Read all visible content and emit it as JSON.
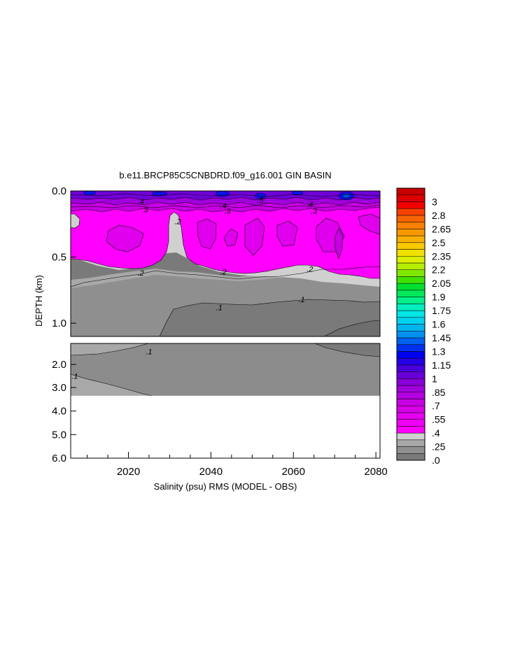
{
  "chart_data": {
    "type": "contour",
    "title": "b.e11.BRCP85C5CNBDRD.f09_g16.001 GIN BASIN",
    "xlabel": "Salinity (psu) RMS (MODEL - OBS)",
    "ylabel": "DEPTH (km)",
    "xlim": [
      2006,
      2081
    ],
    "x_ticks": [
      {
        "value": 2020,
        "label": "2020"
      },
      {
        "value": 2040,
        "label": "2040"
      },
      {
        "value": 2060,
        "label": "2060"
      },
      {
        "value": 2080,
        "label": "2080"
      }
    ],
    "upper_panel": {
      "depth_range_km": [
        0.0,
        1.1
      ],
      "y_ticks": [
        {
          "value": 0.0,
          "label": "0.0"
        },
        {
          "value": 0.5,
          "label": "0.5"
        },
        {
          "value": 1.0,
          "label": "1.0"
        }
      ],
      "contour_labels": [
        {
          "x": 2023,
          "depth": 0.08,
          "label": ".4"
        },
        {
          "x": 2024,
          "depth": 0.14,
          "label": ".3"
        },
        {
          "x": 2043,
          "depth": 0.11,
          "label": ".4"
        },
        {
          "x": 2044,
          "depth": 0.15,
          "label": ".3"
        },
        {
          "x": 2052,
          "depth": 0.07,
          "label": ".5"
        },
        {
          "x": 2064,
          "depth": 0.1,
          "label": ".4"
        },
        {
          "x": 2065,
          "depth": 0.15,
          "label": ".3"
        },
        {
          "x": 2032,
          "depth": 0.23,
          "label": ".2"
        },
        {
          "x": 2023,
          "depth": 0.62,
          "label": ".2"
        },
        {
          "x": 2043,
          "depth": 0.61,
          "label": ".2"
        },
        {
          "x": 2064,
          "depth": 0.59,
          "label": ".2"
        },
        {
          "x": 2042,
          "depth": 0.88,
          "label": ".1"
        },
        {
          "x": 2062,
          "depth": 0.82,
          "label": ".1"
        }
      ]
    },
    "lower_panel": {
      "depth_range_km": [
        1.1,
        6.0
      ],
      "y_ticks": [
        {
          "value": 2.0,
          "label": "2.0"
        },
        {
          "value": 3.0,
          "label": "3.0"
        },
        {
          "value": 4.0,
          "label": "4.0"
        },
        {
          "value": 5.0,
          "label": "5.0"
        },
        {
          "value": 6.0,
          "label": "6.0"
        }
      ],
      "data_bottom_km": 3.35,
      "contour_labels": [
        {
          "x": 2025,
          "depth": 1.45,
          "label": ".1"
        },
        {
          "x": 2007,
          "depth": 2.5,
          "label": ".1"
        }
      ]
    },
    "colorbar": {
      "labels": [
        "3",
        "2.8",
        "2.65",
        "2.5",
        "2.35",
        "2.2",
        "2.05",
        "1.9",
        "1.75",
        "1.6",
        "1.45",
        "1.3",
        "1.15",
        "1",
        ".85",
        ".7",
        ".55",
        ".4",
        ".25",
        ".0"
      ],
      "levels": 40,
      "colors": [
        "#7a7a7a",
        "#8f8f8f",
        "#a8a8a8",
        "#d0d0d0",
        "#ff00ff",
        "#f000f4",
        "#e400ee",
        "#d800e8",
        "#c800e4",
        "#b400e0",
        "#a000dc",
        "#8a00d8",
        "#6a00d8",
        "#4a00dc",
        "#2400e4",
        "#0000f0",
        "#0030f0",
        "#0060ef",
        "#0090ee",
        "#00b4ee",
        "#00d2ee",
        "#00e6e6",
        "#00eebe",
        "#00ee8a",
        "#00e85a",
        "#00e030",
        "#40e000",
        "#80e800",
        "#b4ee00",
        "#dcee00",
        "#f0e000",
        "#f8c800",
        "#f8b000",
        "#f89800",
        "#f88000",
        "#f86400",
        "#f84000",
        "#f00000",
        "#dc0000",
        "#c80000"
      ]
    }
  }
}
